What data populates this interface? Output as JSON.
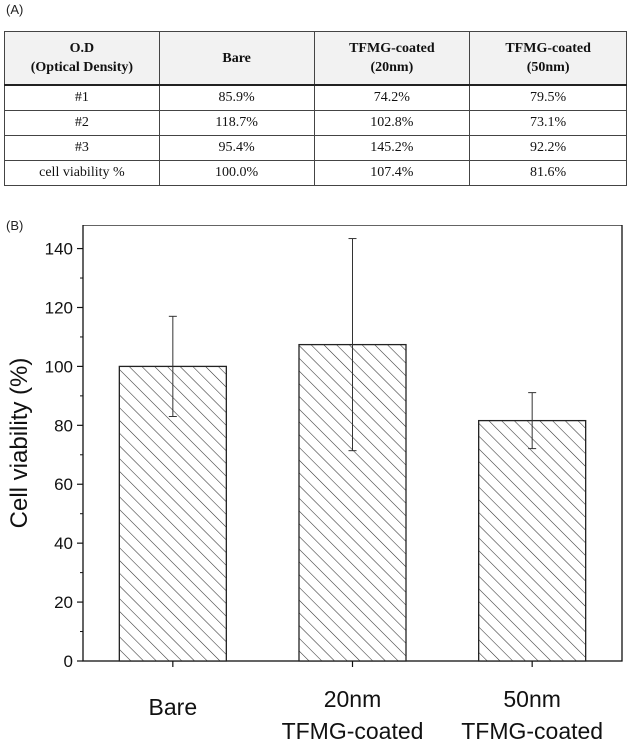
{
  "panel_a_label": "(A)",
  "panel_b_label": "(B)",
  "table": {
    "header": [
      [
        "O.D",
        "(Optical Density)"
      ],
      [
        "Bare"
      ],
      [
        "TFMG-coated",
        "(20nm)"
      ],
      [
        "TFMG-coated",
        "(50nm)"
      ]
    ],
    "rows": [
      [
        "#1",
        "85.9%",
        "74.2%",
        "79.5%"
      ],
      [
        "#2",
        "118.7%",
        "102.8%",
        "73.1%"
      ],
      [
        "#3",
        "95.4%",
        "145.2%",
        "92.2%"
      ],
      [
        "cell viability %",
        "100.0%",
        "107.4%",
        "81.6%"
      ]
    ]
  },
  "chart_data": {
    "type": "bar",
    "categories": [
      [
        "Bare"
      ],
      [
        "20nm",
        "TFMG-coated"
      ],
      [
        "50nm",
        "TFMG-coated"
      ]
    ],
    "values": [
      100.0,
      107.4,
      81.6
    ],
    "error_bars": [
      17,
      36,
      9.5
    ],
    "ylabel": "Cell viability (%)",
    "xlabel": "",
    "ylim": [
      0,
      148
    ],
    "yticks": [
      0,
      20,
      40,
      60,
      80,
      100,
      120,
      140
    ],
    "bar_pattern": "diagonal-hatch",
    "grid": false,
    "legend": "none",
    "colors": {
      "bar_fill": "#ffffff",
      "bar_stroke": "#222222",
      "hatch": "#333333",
      "axis": "#111111"
    }
  }
}
